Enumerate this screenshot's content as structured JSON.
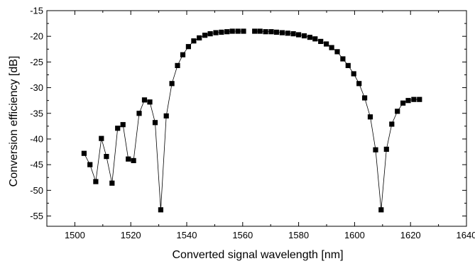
{
  "chart_data": {
    "type": "scatter",
    "xlabel": "Converted signal wavelength [nm]",
    "ylabel": "Conversion efficiency [dB]",
    "xlim": [
      1490,
      1640
    ],
    "ylim": [
      -57,
      -15
    ],
    "xticks": [
      1500,
      1520,
      1540,
      1560,
      1580,
      1600,
      1620,
      1640
    ],
    "yticks": [
      -15,
      -20,
      -25,
      -30,
      -35,
      -40,
      -45,
      -50,
      -55
    ],
    "x_tick_labels": [
      "1500",
      "1520",
      "1540",
      "1560",
      "1580",
      "1600",
      "1620",
      "1640"
    ],
    "y_tick_labels": [
      "-15",
      "-20",
      "-25",
      "-30",
      "-35",
      "-40",
      "-45",
      "-50",
      "-55"
    ],
    "grid": false,
    "marker": "square",
    "line": "connected",
    "color": "#000000",
    "series": [
      {
        "x": [
          1503.3,
          1505.4,
          1507.5,
          1509.5,
          1511.3,
          1513.3,
          1515.3,
          1517.2,
          1519.1,
          1521.0,
          1523.0,
          1524.9,
          1526.8,
          1528.7,
          1530.7,
          1532.7,
          1534.7,
          1536.7,
          1538.6,
          1540.6,
          1542.5,
          1544.5,
          1546.5,
          1548.4,
          1550.4,
          1552.4,
          1554.4,
          1556.3,
          1558.3,
          1560.3
        ],
        "y": [
          -42.8,
          -45.0,
          -48.3,
          -39.9,
          -43.4,
          -48.6,
          -37.9,
          -37.2,
          -43.9,
          -44.2,
          -35.0,
          -32.4,
          -32.8,
          -36.8,
          -53.8,
          -35.5,
          -29.2,
          -25.7,
          -23.6,
          -22.0,
          -20.9,
          -20.3,
          -19.8,
          -19.5,
          -19.3,
          -19.2,
          -19.1,
          -19.0,
          -19.0,
          -19.0
        ]
      },
      {
        "x": [
          1564.3,
          1566.2,
          1568.2,
          1570.2,
          1572.1,
          1574.1,
          1576.1,
          1578.1,
          1580.0,
          1582.0,
          1584.0,
          1585.9,
          1587.9,
          1589.9,
          1591.8,
          1593.8,
          1595.8,
          1597.7,
          1599.7,
          1601.6,
          1603.6,
          1605.6,
          1607.5,
          1609.5,
          1611.4,
          1613.3,
          1615.3,
          1617.3,
          1619.2,
          1621.2,
          1623.2
        ],
        "y": [
          -19.0,
          -19.0,
          -19.1,
          -19.1,
          -19.2,
          -19.3,
          -19.4,
          -19.5,
          -19.7,
          -19.9,
          -20.2,
          -20.5,
          -21.0,
          -21.5,
          -22.2,
          -23.0,
          -24.4,
          -25.7,
          -27.3,
          -29.2,
          -32.0,
          -35.7,
          -42.1,
          -53.8,
          -42.0,
          -37.1,
          -34.6,
          -33.0,
          -32.5,
          -32.3,
          -32.3
        ]
      }
    ]
  }
}
